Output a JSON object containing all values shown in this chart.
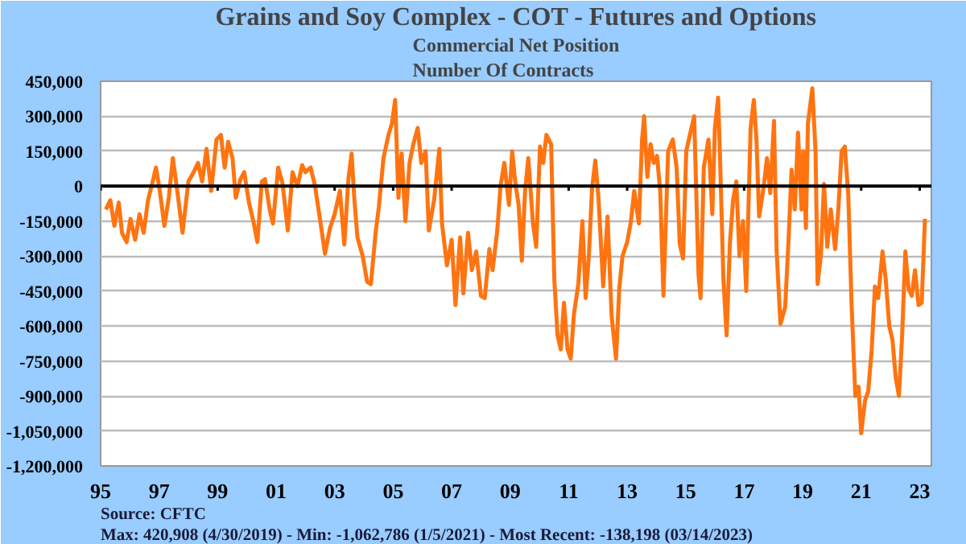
{
  "chart_data": {
    "type": "line",
    "title": "Grains and Soy Complex - COT - Futures and Options",
    "subtitle": "Commercial Net Position\nNumber Of Contracts",
    "annotations": [
      "Source: CFTC",
      "Max: 420,908 (4/30/2019)  -  Min: -1,062,786 (1/5/2021) - Most Recent: -138,198 (03/14/2023)"
    ],
    "x": [
      1995.18,
      1995.33,
      1995.47,
      1995.62,
      1995.73,
      1995.89,
      1996.02,
      1996.18,
      1996.33,
      1996.47,
      1996.62,
      1996.78,
      1996.89,
      1997.0,
      1997.18,
      1997.33,
      1997.47,
      1997.62,
      1997.8,
      1998.0,
      1998.18,
      1998.33,
      1998.47,
      1998.62,
      1998.78,
      1998.96,
      1999.11,
      1999.24,
      1999.36,
      1999.51,
      1999.62,
      1999.78,
      1999.91,
      2000.07,
      2000.22,
      2000.36,
      2000.51,
      2000.62,
      2000.78,
      2000.89,
      2001.07,
      2001.22,
      2001.4,
      2001.56,
      2001.73,
      2001.89,
      2002.0,
      2002.18,
      2002.33,
      2002.51,
      2002.67,
      2002.84,
      2003.0,
      2003.18,
      2003.33,
      2003.47,
      2003.58,
      2003.67,
      2003.78,
      2003.96,
      2004.11,
      2004.24,
      2004.4,
      2004.51,
      2004.67,
      2004.84,
      2004.96,
      2005.07,
      2005.18,
      2005.29,
      2005.42,
      2005.56,
      2005.69,
      2005.84,
      2005.96,
      2006.11,
      2006.22,
      2006.4,
      2006.58,
      2006.67,
      2006.84,
      2007.0,
      2007.13,
      2007.29,
      2007.4,
      2007.56,
      2007.69,
      2007.84,
      2008.0,
      2008.13,
      2008.29,
      2008.4,
      2008.56,
      2008.67,
      2008.8,
      2008.96,
      2009.07,
      2009.18,
      2009.29,
      2009.4,
      2009.51,
      2009.62,
      2009.78,
      2009.89,
      2010.02,
      2010.13,
      2010.24,
      2010.4,
      2010.51,
      2010.62,
      2010.73,
      2010.84,
      2010.96,
      2011.07,
      2011.18,
      2011.33,
      2011.47,
      2011.58,
      2011.69,
      2011.8,
      2011.91,
      2012.02,
      2012.18,
      2012.33,
      2012.47,
      2012.62,
      2012.73,
      2012.84,
      2013.0,
      2013.13,
      2013.24,
      2013.4,
      2013.51,
      2013.58,
      2013.69,
      2013.8,
      2013.91,
      2014.02,
      2014.13,
      2014.24,
      2014.4,
      2014.56,
      2014.69,
      2014.8,
      2014.91,
      2015.02,
      2015.18,
      2015.29,
      2015.44,
      2015.51,
      2015.62,
      2015.78,
      2015.91,
      2016.0,
      2016.11,
      2016.18,
      2016.29,
      2016.4,
      2016.51,
      2016.62,
      2016.73,
      2016.84,
      2016.96,
      2017.07,
      2017.22,
      2017.33,
      2017.42,
      2017.51,
      2017.67,
      2017.78,
      2017.89,
      2018.02,
      2018.11,
      2018.24,
      2018.4,
      2018.51,
      2018.62,
      2018.73,
      2018.84,
      2018.96,
      2019.02,
      2019.11,
      2019.18,
      2019.33,
      2019.44,
      2019.51,
      2019.62,
      2019.73,
      2019.84,
      2019.96,
      2020.11,
      2020.22,
      2020.33,
      2020.44,
      2020.56,
      2020.67,
      2020.8,
      2020.91,
      2021.0,
      2021.13,
      2021.24,
      2021.36,
      2021.47,
      2021.58,
      2021.73,
      2021.84,
      2021.96,
      2022.07,
      2022.18,
      2022.29,
      2022.4,
      2022.51,
      2022.62,
      2022.73,
      2022.84,
      2022.96,
      2023.07,
      2023.18
    ],
    "series": [
      {
        "color": "#ff7410",
        "values": [
          -100000,
          -60000,
          -170000,
          -70000,
          -200000,
          -240000,
          -140000,
          -230000,
          -120000,
          -200000,
          -60000,
          20000,
          80000,
          0,
          -170000,
          -50000,
          120000,
          -20000,
          -200000,
          20000,
          60000,
          100000,
          20000,
          160000,
          -20000,
          200000,
          220000,
          80000,
          190000,
          120000,
          -50000,
          30000,
          60000,
          -70000,
          -150000,
          -240000,
          20000,
          30000,
          -100000,
          -160000,
          80000,
          10000,
          -190000,
          60000,
          0,
          90000,
          60000,
          80000,
          0,
          -150000,
          -290000,
          -180000,
          -120000,
          -20000,
          -250000,
          30000,
          140000,
          -50000,
          -220000,
          -300000,
          -410000,
          -420000,
          -200000,
          -90000,
          120000,
          220000,
          270000,
          370000,
          -50000,
          140000,
          -150000,
          100000,
          180000,
          250000,
          100000,
          150000,
          -190000,
          -60000,
          160000,
          -160000,
          -340000,
          -230000,
          -510000,
          -220000,
          -460000,
          -200000,
          -360000,
          -280000,
          -470000,
          -480000,
          -270000,
          -360000,
          -190000,
          0,
          100000,
          -80000,
          150000,
          10000,
          -80000,
          -320000,
          -20000,
          120000,
          -160000,
          -260000,
          170000,
          100000,
          220000,
          180000,
          -400000,
          -640000,
          -700000,
          -500000,
          -700000,
          -740000,
          -550000,
          -420000,
          -150000,
          -480000,
          -300000,
          -10000,
          110000,
          -50000,
          -430000,
          -130000,
          -560000,
          -740000,
          -440000,
          -300000,
          -240000,
          -150000,
          -20000,
          -160000,
          200000,
          300000,
          40000,
          180000,
          100000,
          130000,
          -20000,
          -470000,
          150000,
          200000,
          80000,
          -250000,
          -310000,
          150000,
          240000,
          300000,
          -380000,
          -480000,
          80000,
          200000,
          -120000,
          250000,
          380000,
          100000,
          -400000,
          -640000,
          -250000,
          -60000,
          20000,
          -300000,
          -150000,
          -450000,
          250000,
          370000,
          200000,
          -130000,
          0,
          120000,
          -30000,
          280000,
          -280000,
          -590000,
          -520000,
          -250000,
          70000,
          -100000,
          230000,
          -100000,
          150000,
          -180000,
          270000,
          420000,
          150000,
          -420000,
          -300000,
          10000,
          -260000,
          -100000,
          -270000,
          -100000,
          150000,
          170000,
          -40000,
          -500000,
          -900000,
          -860000,
          -1060000,
          -920000,
          -880000,
          -700000,
          -430000,
          -480000,
          -280000,
          -400000,
          -600000,
          -660000,
          -820000,
          -900000,
          -640000,
          -280000,
          -440000,
          -470000,
          -360000,
          -510000,
          -500000,
          -140000
        ]
      }
    ],
    "xlim": [
      1995,
      2023.4
    ],
    "xticks": [
      {
        "value": 1995,
        "label": "95"
      },
      {
        "value": 1997,
        "label": "97"
      },
      {
        "value": 1999,
        "label": "99"
      },
      {
        "value": 2001,
        "label": "01"
      },
      {
        "value": 2003,
        "label": "03"
      },
      {
        "value": 2005,
        "label": "05"
      },
      {
        "value": 2007,
        "label": "07"
      },
      {
        "value": 2009,
        "label": "09"
      },
      {
        "value": 2011,
        "label": "11"
      },
      {
        "value": 2013,
        "label": "13"
      },
      {
        "value": 2015,
        "label": "15"
      },
      {
        "value": 2017,
        "label": "17"
      },
      {
        "value": 2019,
        "label": "19"
      },
      {
        "value": 2021,
        "label": "21"
      },
      {
        "value": 2023,
        "label": "23"
      }
    ],
    "ylim": [
      -1200000,
      450000
    ],
    "yticks": [
      {
        "value": -1200000,
        "label": "-1,200,000"
      },
      {
        "value": -1050000,
        "label": "-1,050,000"
      },
      {
        "value": -900000,
        "label": "-900,000"
      },
      {
        "value": -750000,
        "label": "-750,000"
      },
      {
        "value": -600000,
        "label": "-600,000"
      },
      {
        "value": -450000,
        "label": "-450,000"
      },
      {
        "value": -300000,
        "label": "-300,000"
      },
      {
        "value": -150000,
        "label": "-150,000"
      },
      {
        "value": 0,
        "label": "0"
      },
      {
        "value": 150000,
        "label": "150,000"
      },
      {
        "value": 300000,
        "label": "300,000"
      },
      {
        "value": 450000,
        "label": "450,000"
      }
    ],
    "ref_lines": [
      {
        "axis": "y",
        "value": 0,
        "color": "#000000"
      }
    ],
    "grid": "y",
    "marker": "none",
    "line_style": "solid"
  }
}
